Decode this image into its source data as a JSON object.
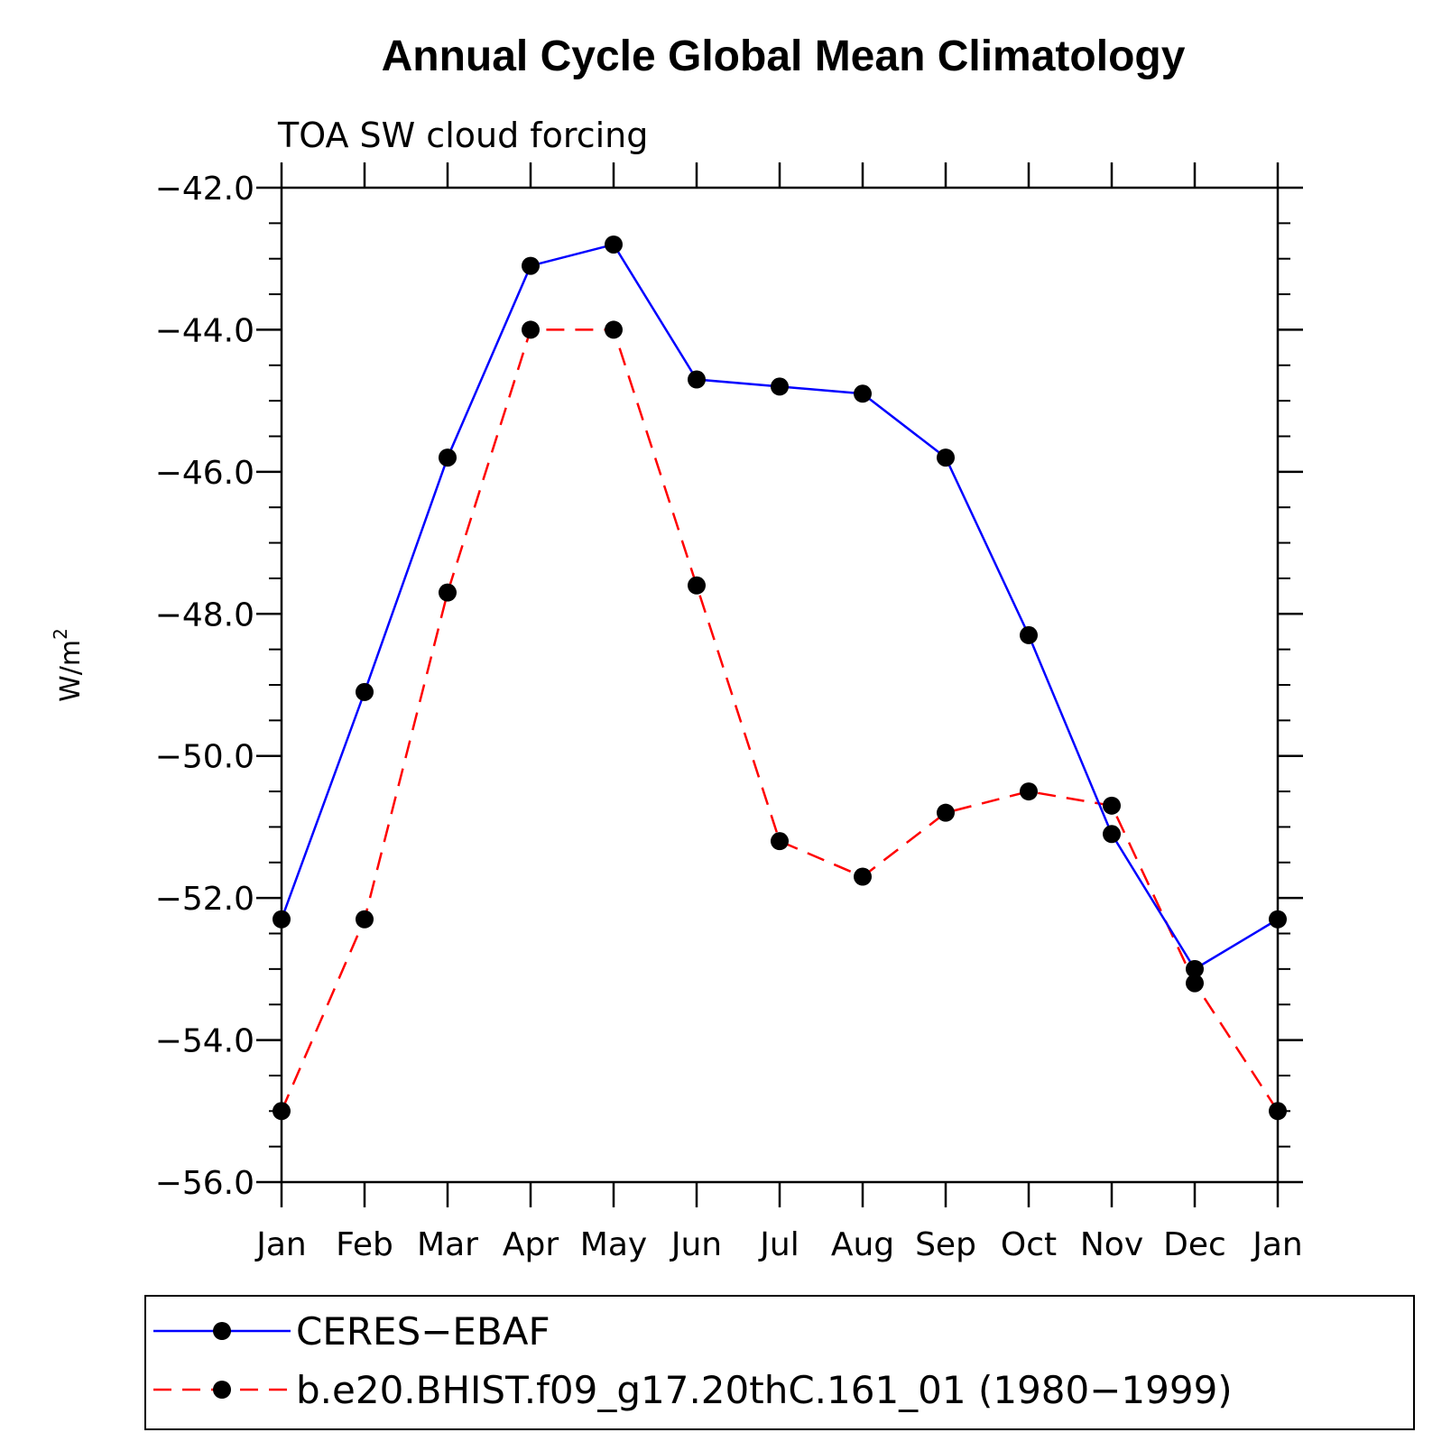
{
  "chart_data": {
    "type": "line",
    "title": "Annual Cycle Global Mean Climatology",
    "subtitle": "TOA SW cloud forcing",
    "ylabel": "W/m",
    "ylabel_superscript": "2",
    "ylim": [
      -56.0,
      -42.0
    ],
    "yticks": [
      -42.0,
      -44.0,
      -46.0,
      -48.0,
      -50.0,
      -52.0,
      -54.0,
      -56.0
    ],
    "ytick_labels": [
      "−42.0",
      "−44.0",
      "−46.0",
      "−48.0",
      "−50.0",
      "−52.0",
      "−54.0",
      "−56.0"
    ],
    "categories": [
      "Jan",
      "Feb",
      "Mar",
      "Apr",
      "May",
      "Jun",
      "Jul",
      "Aug",
      "Sep",
      "Oct",
      "Nov",
      "Dec",
      "Jan"
    ],
    "grid": false,
    "legend_position": "bottom",
    "series": [
      {
        "name": "CERES−EBAF",
        "color": "#0000ff",
        "line_style": "solid",
        "marker": "filled-circle",
        "values": [
          -52.3,
          -49.1,
          -45.8,
          -43.1,
          -42.8,
          -44.7,
          -44.8,
          -44.9,
          -45.8,
          -48.3,
          -51.1,
          -53.0,
          -52.3
        ]
      },
      {
        "name": "b.e20.BHIST.f09_g17.20thC.161_01 (1980−1999)",
        "color": "#ff0000",
        "line_style": "dashed",
        "marker": "filled-circle",
        "values": [
          -55.0,
          -52.3,
          -47.7,
          -44.0,
          -44.0,
          -47.6,
          -51.2,
          -51.7,
          -50.8,
          -50.5,
          -50.7,
          -53.2,
          -55.0
        ]
      }
    ]
  }
}
